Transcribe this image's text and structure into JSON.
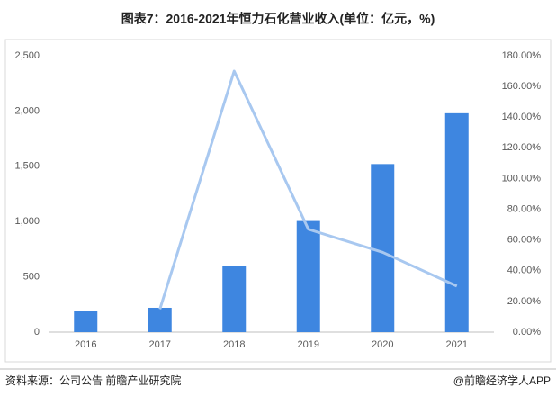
{
  "chart_data": {
    "type": "combo",
    "title": "图表7：2016-2021年恒力石化营业收入(单位：亿元，%)",
    "categories": [
      "2016",
      "2017",
      "2018",
      "2019",
      "2020",
      "2021"
    ],
    "series": [
      {
        "type": "bar",
        "color": "#3e86e0",
        "values": [
          190,
          220,
          600,
          1005,
          1520,
          1980
        ]
      },
      {
        "type": "line",
        "axis": "y2",
        "color": "#a8c8f0",
        "values": [
          null,
          15,
          170,
          67,
          52,
          30
        ]
      }
    ],
    "ylim": [
      0,
      2500
    ],
    "yticks": [
      0,
      500,
      {
        "value": 1000,
        "label": "1,000"
      },
      {
        "value": 1500,
        "label": "1,500"
      },
      {
        "value": 2000,
        "label": "2,000"
      },
      {
        "value": 2500,
        "label": "2,500"
      }
    ],
    "y2lim": [
      0,
      180
    ],
    "y2ticks": [
      {
        "value": 0,
        "label": "0.00%"
      },
      {
        "value": 20,
        "label": "20.00%"
      },
      {
        "value": 40,
        "label": "40.00%"
      },
      {
        "value": 60,
        "label": "60.00%"
      },
      {
        "value": 80,
        "label": "80.00%"
      },
      {
        "value": 100,
        "label": "100.00%"
      },
      {
        "value": 120,
        "label": "120.00%"
      },
      {
        "value": 140,
        "label": "140.00%"
      },
      {
        "value": 160,
        "label": "160.00%"
      },
      {
        "value": 180,
        "label": "180.00%"
      }
    ],
    "source": "资料来源：公司公告 前瞻产业研究院",
    "credit": "@前瞻经济学人APP"
  }
}
